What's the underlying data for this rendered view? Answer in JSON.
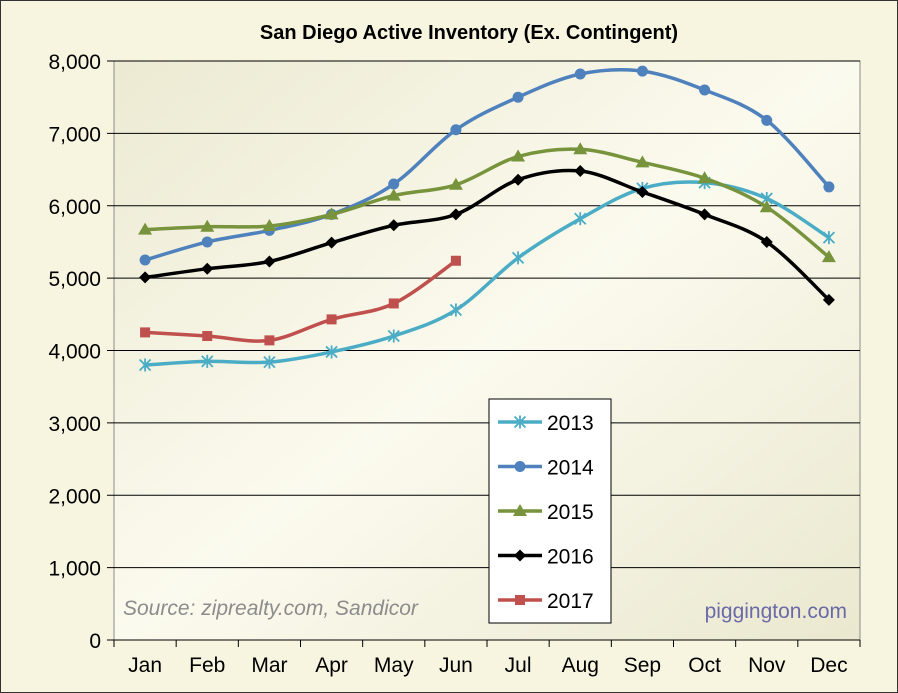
{
  "chart_data": {
    "type": "line",
    "title": "San Diego Active Inventory (Ex. Contingent)",
    "xlabel": "",
    "ylabel": "",
    "ylim": [
      0,
      8000
    ],
    "yticks": [
      0,
      1000,
      2000,
      3000,
      4000,
      5000,
      6000,
      7000,
      8000
    ],
    "ytick_labels": [
      "0",
      "1,000",
      "2,000",
      "3,000",
      "4,000",
      "5,000",
      "6,000",
      "7,000",
      "8,000"
    ],
    "grid": true,
    "legend_position": "bottom-center",
    "categories": [
      "Jan",
      "Feb",
      "Mar",
      "Apr",
      "May",
      "Jun",
      "Jul",
      "Aug",
      "Sep",
      "Oct",
      "Nov",
      "Dec"
    ],
    "series": [
      {
        "name": "2013",
        "color": "#4bacc6",
        "marker": "asterisk",
        "values": [
          3800,
          3850,
          3840,
          3980,
          4200,
          4560,
          5280,
          5820,
          6240,
          6320,
          6100,
          5560
        ]
      },
      {
        "name": "2014",
        "color": "#4f81bd",
        "marker": "circle",
        "values": [
          5250,
          5500,
          5660,
          5880,
          6300,
          7050,
          7500,
          7820,
          7860,
          7600,
          7180,
          6260
        ]
      },
      {
        "name": "2015",
        "color": "#77933c",
        "marker": "triangle",
        "values": [
          5670,
          5710,
          5720,
          5880,
          6140,
          6290,
          6680,
          6780,
          6600,
          6380,
          5980,
          5290
        ]
      },
      {
        "name": "2016",
        "color": "#000000",
        "marker": "diamond",
        "values": [
          5010,
          5130,
          5230,
          5490,
          5730,
          5880,
          6360,
          6480,
          6190,
          5880,
          5500,
          4700
        ]
      },
      {
        "name": "2017",
        "color": "#c0504d",
        "marker": "square",
        "values": [
          4250,
          4200,
          4140,
          4430,
          4650,
          5240,
          null,
          null,
          null,
          null,
          null,
          null
        ]
      }
    ],
    "annotations": [
      "Source: ziprealty.com, Sandicor",
      "piggington.com"
    ]
  }
}
